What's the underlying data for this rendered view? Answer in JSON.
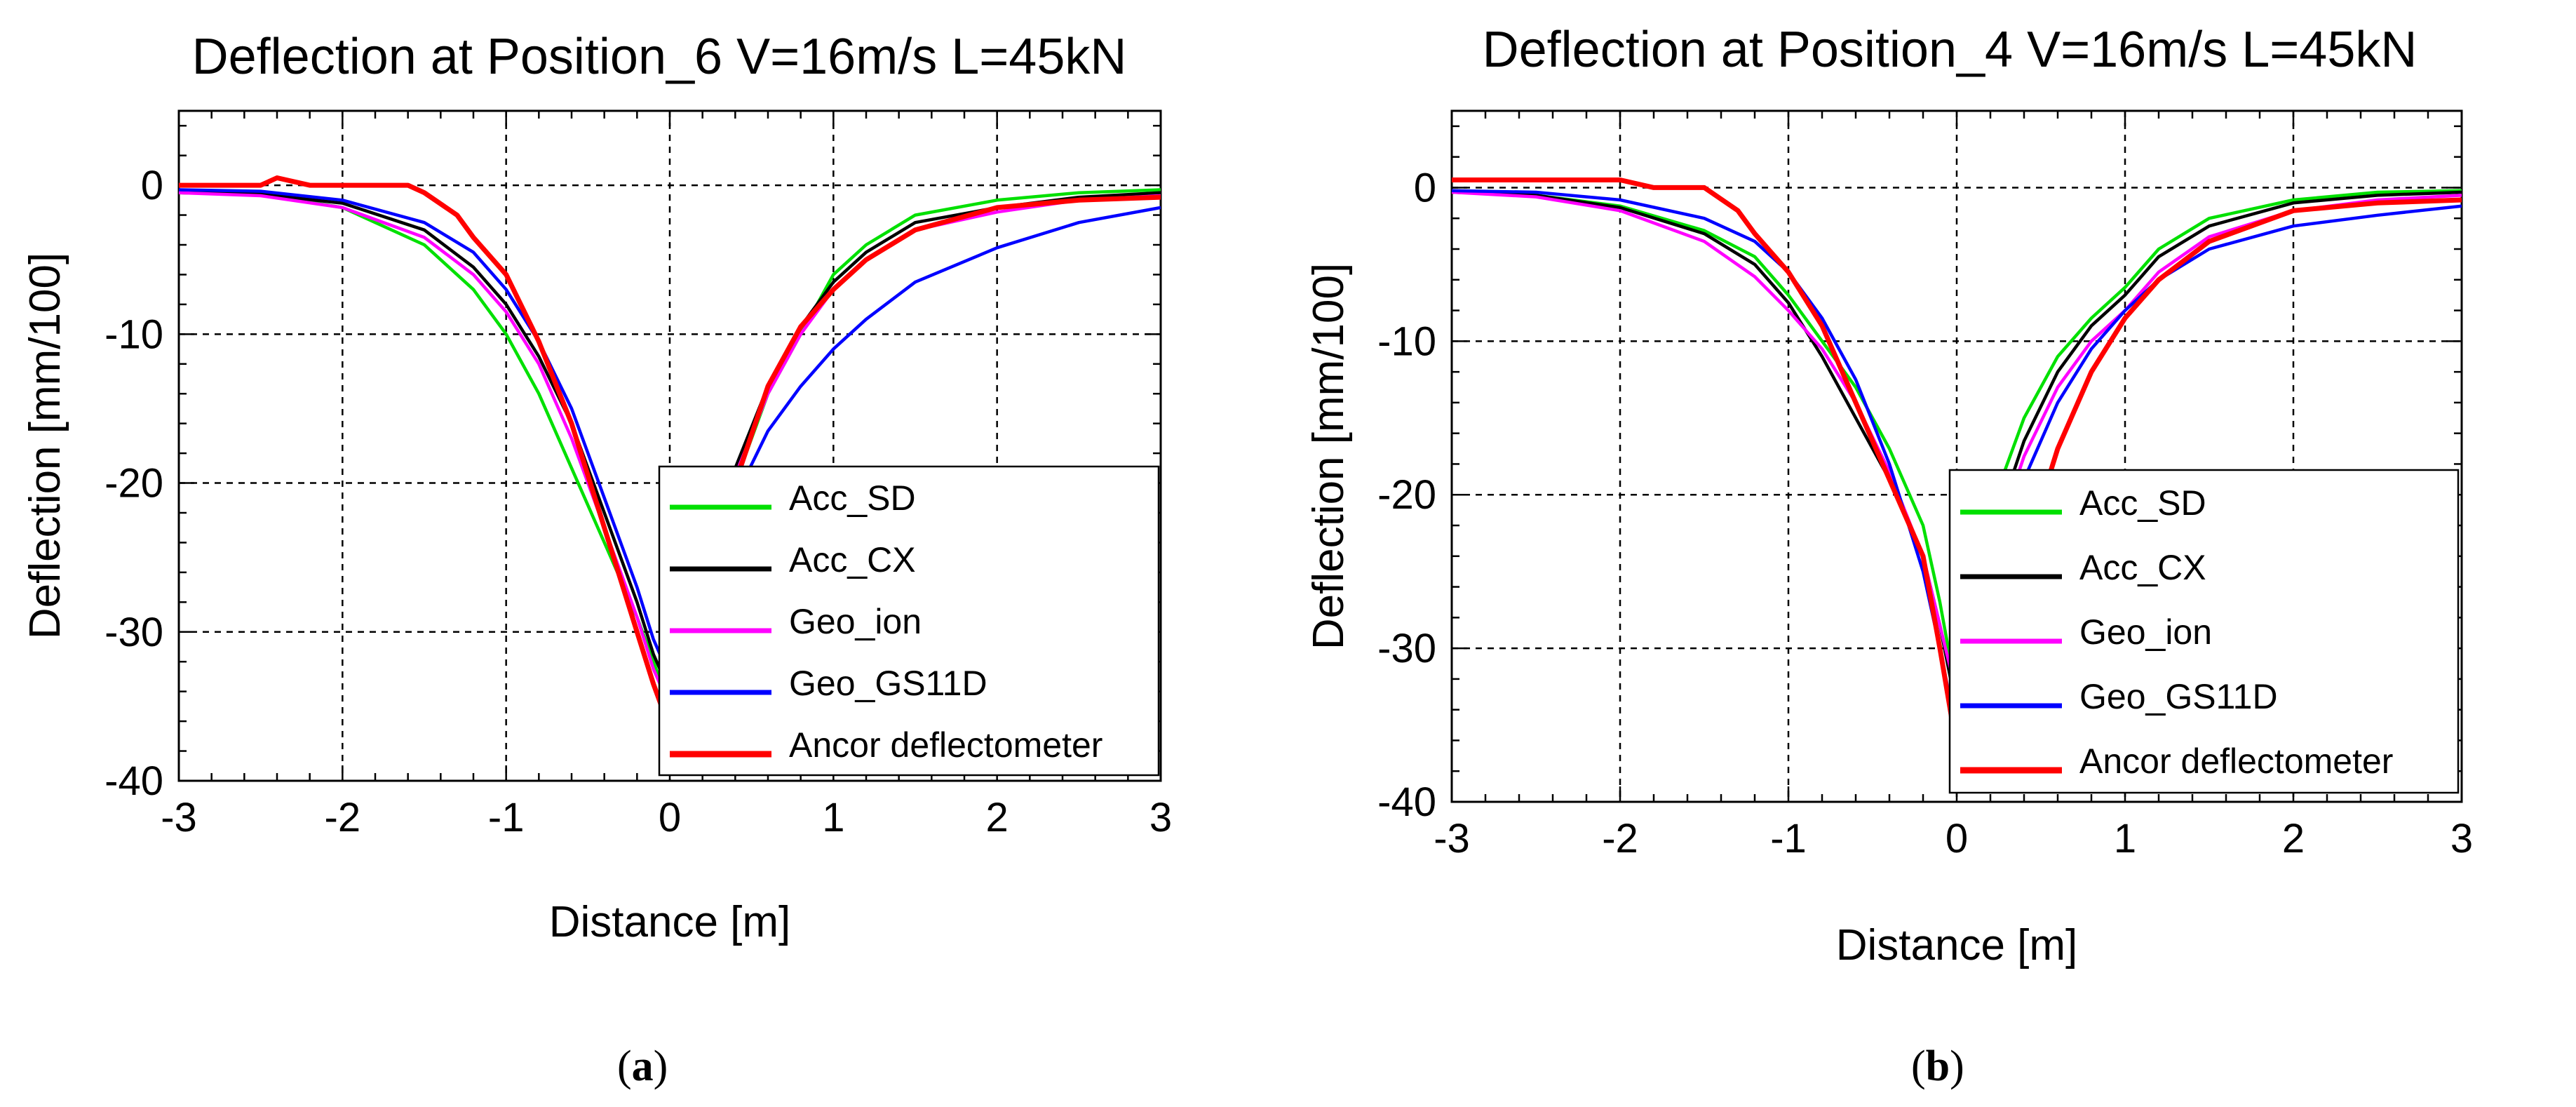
{
  "chart_data": [
    {
      "type": "line",
      "title": "Deflection at Position_6 V=16m/s L=45kN",
      "xlabel": "Distance [m]",
      "ylabel": "Deflection [mm/100]",
      "caption": "a",
      "xlim": [
        -3,
        3
      ],
      "ylim": [
        -40,
        5
      ],
      "xticks": [
        "-3",
        "-2",
        "-1",
        "0",
        "1",
        "2",
        "3"
      ],
      "yticks": [
        "0",
        "-10",
        "-20",
        "-30",
        "-40"
      ],
      "grid": true,
      "legend_position": "bottom-right",
      "series": [
        {
          "name": "Acc_SD",
          "color": "#00e000",
          "x": [
            -3,
            -2.5,
            -2,
            -1.5,
            -1.2,
            -1,
            -0.8,
            -0.6,
            -0.4,
            -0.2,
            -0.1,
            0,
            0.1,
            0.2,
            0.4,
            0.6,
            0.8,
            1,
            1.2,
            1.5,
            2,
            2.5,
            3
          ],
          "y": [
            -0.5,
            -0.6,
            -1.5,
            -4,
            -7,
            -10,
            -14,
            -19,
            -24,
            -29,
            -32,
            -35,
            -32,
            -27,
            -20,
            -14,
            -10,
            -6,
            -4,
            -2,
            -1,
            -0.5,
            -0.3
          ]
        },
        {
          "name": "Acc_CX",
          "color": "#000000",
          "x": [
            -3,
            -2.5,
            -2,
            -1.5,
            -1.2,
            -1,
            -0.8,
            -0.6,
            -0.4,
            -0.2,
            -0.1,
            0,
            0.1,
            0.2,
            0.4,
            0.6,
            0.8,
            1,
            1.2,
            1.5,
            2,
            2.5,
            3
          ],
          "y": [
            -0.5,
            -0.6,
            -1.2,
            -3,
            -5.5,
            -8,
            -11.5,
            -16,
            -22,
            -28,
            -31.5,
            -34,
            -31,
            -26,
            -19,
            -13.5,
            -9.5,
            -6.5,
            -4.5,
            -2.5,
            -1.5,
            -0.8,
            -0.5
          ]
        },
        {
          "name": "Geo_ion",
          "color": "#ff00ff",
          "x": [
            -3,
            -2.5,
            -2,
            -1.5,
            -1.2,
            -1,
            -0.8,
            -0.6,
            -0.4,
            -0.2,
            -0.1,
            0,
            0.1,
            0.2,
            0.4,
            0.6,
            0.8,
            1,
            1.2,
            1.5,
            2,
            2.5,
            3
          ],
          "y": [
            -0.5,
            -0.7,
            -1.5,
            -3.5,
            -6,
            -8.5,
            -12,
            -17,
            -23,
            -29,
            -32.5,
            -35,
            -32,
            -27,
            -19.5,
            -14,
            -10,
            -7,
            -5,
            -3,
            -1.8,
            -1,
            -0.7
          ]
        },
        {
          "name": "Geo_GS11D",
          "color": "#0000ff",
          "x": [
            -3,
            -2.5,
            -2,
            -1.5,
            -1.2,
            -1,
            -0.8,
            -0.6,
            -0.4,
            -0.2,
            -0.1,
            0,
            0.1,
            0.2,
            0.4,
            0.6,
            0.8,
            1,
            1.2,
            1.5,
            2,
            2.5,
            3
          ],
          "y": [
            -0.3,
            -0.4,
            -1,
            -2.5,
            -4.5,
            -7,
            -10.5,
            -15,
            -21,
            -27,
            -30.5,
            -33,
            -31,
            -27,
            -21,
            -16.5,
            -13.5,
            -11,
            -9,
            -6.5,
            -4.2,
            -2.5,
            -1.5
          ]
        },
        {
          "name": "Ancor deflectometer",
          "color": "#ff0000",
          "x": [
            -3,
            -2.5,
            -2.4,
            -2.2,
            -2,
            -1.8,
            -1.6,
            -1.5,
            -1.3,
            -1.2,
            -1,
            -0.8,
            -0.6,
            -0.4,
            -0.2,
            -0.1,
            0,
            0.1,
            0.2,
            0.4,
            0.6,
            0.8,
            1,
            1.2,
            1.5,
            2,
            2.5,
            3
          ],
          "y": [
            0,
            0,
            0.5,
            0,
            0,
            0,
            0,
            -0.5,
            -2,
            -3.5,
            -6,
            -10.5,
            -16,
            -23,
            -30,
            -33.5,
            -36.5,
            -33,
            -28,
            -20,
            -13.5,
            -9.5,
            -7,
            -5,
            -3,
            -1.5,
            -1,
            -0.8
          ]
        }
      ]
    },
    {
      "type": "line",
      "title": "Deflection at Position_4 V=16m/s L=45kN",
      "xlabel": "Distance [m]",
      "ylabel": "Deflection [mm/100]",
      "caption": "b",
      "xlim": [
        -3,
        3
      ],
      "ylim": [
        -40,
        5
      ],
      "xticks": [
        "-3",
        "-2",
        "-1",
        "0",
        "1",
        "2",
        "3"
      ],
      "yticks": [
        "0",
        "-10",
        "-20",
        "-30",
        "-40"
      ],
      "grid": true,
      "legend_position": "bottom-right",
      "series": [
        {
          "name": "Acc_SD",
          "color": "#00e000",
          "x": [
            -3,
            -2.5,
            -2,
            -1.5,
            -1.2,
            -1,
            -0.8,
            -0.6,
            -0.4,
            -0.2,
            -0.1,
            0,
            0.1,
            0.2,
            0.4,
            0.6,
            0.8,
            1,
            1.2,
            1.5,
            2,
            2.5,
            3
          ],
          "y": [
            -0.3,
            -0.5,
            -1.2,
            -2.8,
            -4.5,
            -7,
            -10,
            -13,
            -17,
            -22,
            -27,
            -33,
            -27,
            -21,
            -15,
            -11,
            -8.5,
            -6.5,
            -4,
            -2,
            -0.8,
            -0.3,
            -0.2
          ]
        },
        {
          "name": "Acc_CX",
          "color": "#000000",
          "x": [
            -3,
            -2.5,
            -2,
            -1.5,
            -1.2,
            -1,
            -0.8,
            -0.6,
            -0.4,
            -0.2,
            -0.1,
            0,
            0.1,
            0.2,
            0.4,
            0.6,
            0.8,
            1,
            1.2,
            1.5,
            2,
            2.5,
            3
          ],
          "y": [
            -0.3,
            -0.5,
            -1.3,
            -3,
            -5,
            -7.5,
            -11,
            -15,
            -19,
            -24,
            -28.5,
            -34,
            -28.5,
            -23,
            -16.5,
            -12,
            -9,
            -7,
            -4.5,
            -2.5,
            -1,
            -0.5,
            -0.3
          ]
        },
        {
          "name": "Geo_ion",
          "color": "#ff00ff",
          "x": [
            -3,
            -2.5,
            -2,
            -1.5,
            -1.2,
            -1,
            -0.8,
            -0.6,
            -0.4,
            -0.2,
            -0.1,
            0,
            0.1,
            0.2,
            0.4,
            0.6,
            0.8,
            1,
            1.2,
            1.5,
            2,
            2.5,
            3
          ],
          "y": [
            -0.3,
            -0.6,
            -1.5,
            -3.5,
            -5.8,
            -8,
            -10.5,
            -14,
            -18.5,
            -24,
            -28.5,
            -33,
            -29,
            -24,
            -17.5,
            -13,
            -10,
            -8,
            -5.5,
            -3.2,
            -1.5,
            -0.8,
            -0.5
          ]
        },
        {
          "name": "Geo_GS11D",
          "color": "#0000ff",
          "x": [
            -3,
            -2.5,
            -2,
            -1.5,
            -1.2,
            -1,
            -0.8,
            -0.6,
            -0.4,
            -0.2,
            -0.1,
            0,
            0.1,
            0.2,
            0.4,
            0.6,
            0.8,
            1,
            1.2,
            1.5,
            2,
            2.5,
            3
          ],
          "y": [
            -0.2,
            -0.3,
            -0.8,
            -2,
            -3.5,
            -5.5,
            -8.5,
            -12.5,
            -18,
            -25,
            -30,
            -35.5,
            -31,
            -26,
            -19,
            -14,
            -10.5,
            -8,
            -6,
            -4,
            -2.5,
            -1.8,
            -1.2
          ]
        },
        {
          "name": "Ancor deflectometer",
          "color": "#ff0000",
          "x": [
            -3,
            -2.5,
            -2,
            -1.8,
            -1.6,
            -1.5,
            -1.3,
            -1.2,
            -1,
            -0.8,
            -0.6,
            -0.4,
            -0.2,
            -0.1,
            0,
            0.1,
            0.2,
            0.4,
            0.6,
            0.8,
            1,
            1.2,
            1.5,
            2,
            2.5,
            3
          ],
          "y": [
            0.5,
            0.5,
            0.5,
            0,
            0,
            0,
            -1.5,
            -3,
            -5.5,
            -9,
            -14,
            -19,
            -24,
            -30,
            -36.5,
            -34,
            -30,
            -24,
            -17,
            -12,
            -8.5,
            -6,
            -3.5,
            -1.5,
            -1,
            -0.8
          ]
        }
      ]
    }
  ]
}
